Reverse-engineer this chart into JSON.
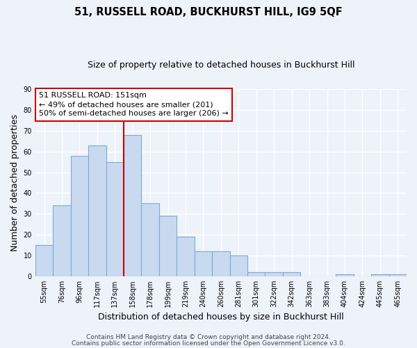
{
  "title": "51, RUSSELL ROAD, BUCKHURST HILL, IG9 5QF",
  "subtitle": "Size of property relative to detached houses in Buckhurst Hill",
  "xlabel": "Distribution of detached houses by size in Buckhurst Hill",
  "ylabel": "Number of detached properties",
  "bin_labels": [
    "55sqm",
    "76sqm",
    "96sqm",
    "117sqm",
    "137sqm",
    "158sqm",
    "178sqm",
    "199sqm",
    "219sqm",
    "240sqm",
    "260sqm",
    "281sqm",
    "301sqm",
    "322sqm",
    "342sqm",
    "363sqm",
    "383sqm",
    "404sqm",
    "424sqm",
    "445sqm",
    "465sqm"
  ],
  "bar_values": [
    15,
    34,
    58,
    63,
    55,
    68,
    35,
    29,
    19,
    12,
    12,
    10,
    2,
    2,
    2,
    0,
    0,
    1,
    0,
    1,
    1
  ],
  "bar_color": "#c9d9f0",
  "bar_edge_color": "#7aacd6",
  "vline_color": "#cc0000",
  "vline_x_index": 4.5,
  "annotation_line1": "51 RUSSELL ROAD: 151sqm",
  "annotation_line2": "← 49% of detached houses are smaller (201)",
  "annotation_line3": "50% of semi-detached houses are larger (206) →",
  "ylim": [
    0,
    90
  ],
  "yticks": [
    0,
    10,
    20,
    30,
    40,
    50,
    60,
    70,
    80,
    90
  ],
  "footer_line1": "Contains HM Land Registry data © Crown copyright and database right 2024.",
  "footer_line2": "Contains public sector information licensed under the Open Government Licence v3.0.",
  "bg_color": "#eef2f9",
  "plot_bg_color": "#eef2f9",
  "grid_color": "#ffffff",
  "title_fontsize": 10.5,
  "subtitle_fontsize": 9,
  "axis_label_fontsize": 9,
  "tick_label_fontsize": 7,
  "annotation_fontsize": 8,
  "footer_fontsize": 6.5
}
